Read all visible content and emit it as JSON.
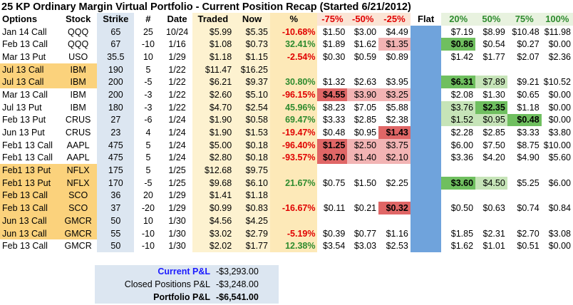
{
  "title": "25 KP Ordinary Margin Virtual Portfolio - Current Position Recap (Started 6/21/2012)",
  "headers": [
    "Options",
    "Stock",
    "Strike",
    "#",
    "Date",
    "Traded",
    "Now",
    "%",
    "-75%",
    "-50%",
    "-25%",
    "Flat",
    "20%",
    "50%",
    "75%",
    "100%"
  ],
  "rows": [
    {
      "opt": "Jan 14 Call",
      "stock": "QQQ",
      "strike": "65",
      "num": "25",
      "date": "10/24",
      "traded": "$5.99",
      "now": "$5.35",
      "pct": "-10.68%",
      "m75": "$1.50",
      "m50": "$3.00",
      "m25": "$4.49",
      "p20": "$7.19",
      "p50": "$8.99",
      "p75": "$10.48",
      "p100": "$11.98",
      "hl": false
    },
    {
      "opt": "Feb 13 Call",
      "stock": "QQQ",
      "strike": "67",
      "num": "-10",
      "date": "1/16",
      "traded": "$1.08",
      "now": "$0.73",
      "pct": "32.41%",
      "m75": "$1.89",
      "m50": "$1.62",
      "m25": "$1.35",
      "p20": "$0.86",
      "p50": "$0.54",
      "p75": "$0.27",
      "p100": "$0.00",
      "hl": false
    },
    {
      "opt": "Mar 13 Put",
      "stock": "USO",
      "strike": "35.5",
      "num": "10",
      "date": "1/29",
      "traded": "$1.18",
      "now": "$1.15",
      "pct": "-2.54%",
      "m75": "$0.30",
      "m50": "$0.59",
      "m25": "$0.89",
      "p20": "$1.42",
      "p50": "$1.77",
      "p75": "$2.07",
      "p100": "$2.36",
      "hl": false
    },
    {
      "opt": "Jul 13 Call",
      "stock": "IBM",
      "strike": "190",
      "num": "5",
      "date": "1/22",
      "traded": "$11.47",
      "now": "$16.25",
      "pct": "",
      "m75": "",
      "m50": "",
      "m25": "",
      "p20": "",
      "p50": "",
      "p75": "",
      "p100": "",
      "hl": true
    },
    {
      "opt": "Jul 13 Call",
      "stock": "IBM",
      "strike": "200",
      "num": "-5",
      "date": "1/22",
      "traded": "$6.21",
      "now": "$9.37",
      "pct": "30.80%",
      "m75": "$1.32",
      "m50": "$2.63",
      "m25": "$3.95",
      "p20": "$6.31",
      "p50": "$7.89",
      "p75": "$9.21",
      "p100": "$10.52",
      "hl": true
    },
    {
      "opt": "Mar 13 Call",
      "stock": "IBM",
      "strike": "200",
      "num": "-3",
      "date": "1/22",
      "traded": "$2.60",
      "now": "$5.10",
      "pct": "-96.15%",
      "m75": "$4.55",
      "m50": "$3.90",
      "m25": "$3.25",
      "p20": "$2.08",
      "p50": "$1.30",
      "p75": "$0.65",
      "p100": "$0.00",
      "hl": false
    },
    {
      "opt": "Jul 13 Put",
      "stock": "IBM",
      "strike": "180",
      "num": "-3",
      "date": "1/22",
      "traded": "$4.70",
      "now": "$2.54",
      "pct": "45.96%",
      "m75": "$8.23",
      "m50": "$7.05",
      "m25": "$5.88",
      "p20": "$3.76",
      "p50": "$2.35",
      "p75": "$1.18",
      "p100": "$0.00",
      "hl": false
    },
    {
      "opt": "Feb 13 Put",
      "stock": "CRUS",
      "strike": "27",
      "num": "-6",
      "date": "1/24",
      "traded": "$1.90",
      "now": "$0.58",
      "pct": "69.47%",
      "m75": "$3.33",
      "m50": "$2.85",
      "m25": "$2.38",
      "p20": "$1.52",
      "p50": "$0.95",
      "p75": "$0.48",
      "p100": "$0.00",
      "hl": false
    },
    {
      "opt": "Jun 13 Put",
      "stock": "CRUS",
      "strike": "23",
      "num": "4",
      "date": "1/24",
      "traded": "$1.90",
      "now": "$1.53",
      "pct": "-19.47%",
      "m75": "$0.48",
      "m50": "$0.95",
      "m25": "$1.43",
      "p20": "$2.28",
      "p50": "$2.85",
      "p75": "$3.33",
      "p100": "$3.80",
      "hl": false
    },
    {
      "opt": "Feb1 13 Call",
      "stock": "AAPL",
      "strike": "475",
      "num": "5",
      "date": "1/24",
      "traded": "$5.00",
      "now": "$0.18",
      "pct": "-96.40%",
      "m75": "$1.25",
      "m50": "$2.50",
      "m25": "$3.75",
      "p20": "$6.00",
      "p50": "$7.50",
      "p75": "$8.75",
      "p100": "$10.00",
      "hl": false
    },
    {
      "opt": "Feb1 13 Call",
      "stock": "AAPL",
      "strike": "475",
      "num": "5",
      "date": "1/24",
      "traded": "$2.80",
      "now": "$0.18",
      "pct": "-93.57%",
      "m75": "$0.70",
      "m50": "$1.40",
      "m25": "$2.10",
      "p20": "$3.36",
      "p50": "$4.20",
      "p75": "$4.90",
      "p100": "$5.60",
      "hl": false
    },
    {
      "opt": "Feb1 13 Put",
      "stock": "NFLX",
      "strike": "175",
      "num": "5",
      "date": "1/25",
      "traded": "$12.68",
      "now": "$9.75",
      "pct": "",
      "m75": "",
      "m50": "",
      "m25": "",
      "p20": "",
      "p50": "",
      "p75": "",
      "p100": "",
      "hl": true
    },
    {
      "opt": "Feb1 13 Put",
      "stock": "NFLX",
      "strike": "170",
      "num": "-5",
      "date": "1/25",
      "traded": "$9.68",
      "now": "$6.10",
      "pct": "21.67%",
      "m75": "$0.75",
      "m50": "$1.50",
      "m25": "$2.25",
      "p20": "$3.60",
      "p50": "$4.50",
      "p75": "$5.25",
      "p100": "$6.00",
      "hl": true
    },
    {
      "opt": "Feb 13 Call",
      "stock": "SCO",
      "strike": "36",
      "num": "20",
      "date": "1/29",
      "traded": "$1.41",
      "now": "$1.18",
      "pct": "",
      "m75": "",
      "m50": "",
      "m25": "",
      "p20": "",
      "p50": "",
      "p75": "",
      "p100": "",
      "hl": true
    },
    {
      "opt": "Feb 13 Call",
      "stock": "SCO",
      "strike": "37",
      "num": "-20",
      "date": "1/29",
      "traded": "$0.99",
      "now": "$0.83",
      "pct": "-16.67%",
      "m75": "$0.11",
      "m50": "$0.21",
      "m25": "$0.32",
      "p20": "$0.50",
      "p50": "$0.63",
      "p75": "$0.74",
      "p100": "$0.84",
      "hl": true
    },
    {
      "opt": "Jun 13 Call",
      "stock": "GMCR",
      "strike": "50",
      "num": "10",
      "date": "1/30",
      "traded": "$4.56",
      "now": "$4.25",
      "pct": "",
      "m75": "",
      "m50": "",
      "m25": "",
      "p20": "",
      "p50": "",
      "p75": "",
      "p100": "",
      "hl": true
    },
    {
      "opt": "Jun 13 Call",
      "stock": "GMCR",
      "strike": "55",
      "num": "-10",
      "date": "1/30",
      "traded": "$3.02",
      "now": "$2.79",
      "pct": "-5.19%",
      "m75": "$0.39",
      "m50": "$0.77",
      "m25": "$1.16",
      "p20": "$1.85",
      "p50": "$2.31",
      "p75": "$2.70",
      "p100": "$3.08",
      "hl": true
    },
    {
      "opt": "Feb 13 Call",
      "stock": "GMCR",
      "strike": "50",
      "num": "-10",
      "date": "1/30",
      "traded": "$2.02",
      "now": "$1.77",
      "pct": "12.38%",
      "m75": "$3.54",
      "m50": "$3.03",
      "m25": "$2.53",
      "p20": "$1.62",
      "p50": "$1.01",
      "p75": "$0.51",
      "p100": "$0.00",
      "hl": false
    }
  ],
  "highlights": {
    "1": {
      "m25": "mid-red",
      "p20": "dark-green"
    },
    "4": {
      "p20": "dark-green",
      "p50": "mid-green"
    },
    "5": {
      "m75": "dark-red",
      "m50": "mid-red",
      "m25": "mid-red"
    },
    "6": {
      "p20": "mid-green",
      "p50": "dark-green"
    },
    "7": {
      "p20": "mid-green",
      "p50": "mid-green",
      "p75": "dark-green"
    },
    "8": {
      "m25": "dark-red"
    },
    "9": {
      "m75": "dark-red",
      "m50": "mid-red",
      "m25": "mid-red"
    },
    "10": {
      "m75": "dark-red",
      "m50": "mid-red",
      "m25": "mid-red"
    },
    "12": {
      "p20": "dark-green",
      "p50": "mid-green"
    },
    "14": {
      "m25": "dark-red"
    }
  },
  "summary": {
    "current_label": "Current P&L",
    "current_value": "-$3,293.00",
    "closed_label": "Closed Positions P&L",
    "closed_value": "-$3,248.00",
    "portfolio_label": "Portfolio P&L",
    "portfolio_value": "-$6,541.00"
  },
  "colors": {
    "negative": "#e00000",
    "positive": "#2e8b2e",
    "flat": "#6fa3dc",
    "row_highlight": "#fbd27c",
    "current_label": "#1a1aff"
  }
}
